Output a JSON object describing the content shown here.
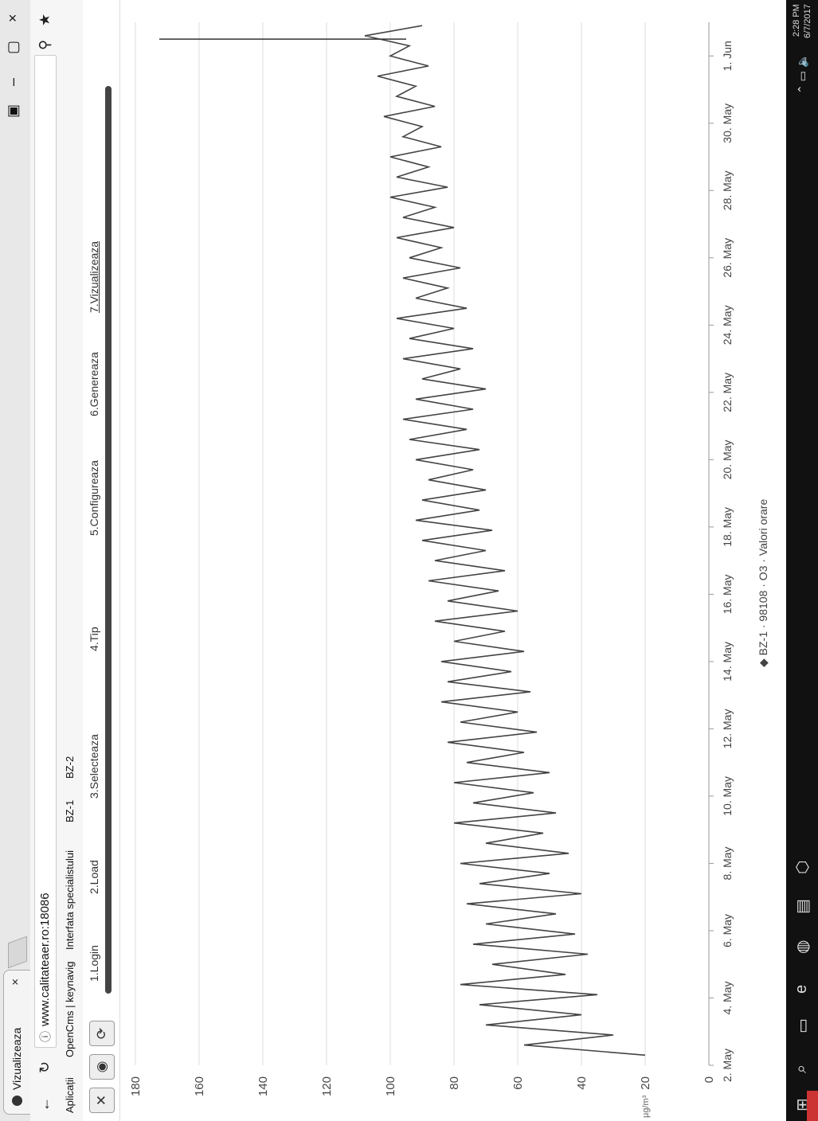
{
  "tab": {
    "title": "Vizualizeaza",
    "close": "×"
  },
  "window": {
    "minimize": "–",
    "maximize": "▢",
    "close": "×"
  },
  "address": {
    "url": "www.calitateaer.ro:18086"
  },
  "bookmarks": [
    "Aplicații",
    "OpenCms | keynavig",
    "Interfata specialistului",
    "BZ-1",
    "BZ-2"
  ],
  "steps": [
    "1.Login",
    "2.Load",
    "3.Selecteaza",
    "4.Tip",
    "5.Configureaza",
    "6.Genereaza",
    "7.Vizualizeaza"
  ],
  "taskbar": {
    "time": "2:28 PM",
    "date": "6/7/2017"
  },
  "chart_data": {
    "type": "line",
    "y_ticks": [
      "0",
      "20",
      "40",
      "60",
      "80",
      "100",
      "120",
      "140",
      "160",
      "180"
    ],
    "ylabel_unit": "µg/m³",
    "x_ticks": [
      "2. May",
      "4. May",
      "6. May",
      "8. May",
      "10. May",
      "12. May",
      "14. May",
      "16. May",
      "18. May",
      "20. May",
      "22. May",
      "24. May",
      "26. May",
      "28. May",
      "30. May",
      "1. Jun"
    ],
    "ylim": [
      0,
      180
    ],
    "xlim": [
      1,
      32
    ],
    "series": [
      {
        "name": "BZ-1 · 98108 · O3 · Valori orare",
        "color": "#444444",
        "x": [
          1.3,
          1.6,
          1.9,
          2.2,
          2.5,
          2.8,
          3.1,
          3.4,
          3.7,
          4.0,
          4.3,
          4.6,
          4.9,
          5.2,
          5.5,
          5.8,
          6.1,
          6.4,
          6.7,
          7.0,
          7.3,
          7.6,
          7.9,
          8.2,
          8.5,
          8.8,
          9.1,
          9.4,
          9.7,
          10.0,
          10.3,
          10.6,
          10.9,
          11.2,
          11.5,
          11.8,
          12.1,
          12.4,
          12.7,
          13.0,
          13.3,
          13.6,
          13.9,
          14.2,
          14.5,
          14.8,
          15.1,
          15.4,
          15.7,
          16.0,
          16.3,
          16.6,
          16.9,
          17.2,
          17.5,
          17.8,
          18.1,
          18.4,
          18.7,
          19.0,
          19.3,
          19.6,
          19.9,
          20.2,
          20.5,
          20.8,
          21.1,
          21.4,
          21.7,
          22.0,
          22.3,
          22.6,
          22.9,
          23.2,
          23.5,
          23.8,
          24.1,
          24.4,
          24.7,
          25.0,
          25.3,
          25.6,
          25.9,
          26.2,
          26.5,
          26.8,
          27.1,
          27.4,
          27.7,
          28.0,
          28.3,
          28.6,
          28.9,
          29.2,
          29.5,
          29.8,
          30.1,
          30.4,
          30.7,
          31.0,
          31.3,
          31.6,
          31.9
        ],
        "y": [
          20,
          58,
          30,
          70,
          40,
          72,
          35,
          78,
          45,
          68,
          38,
          74,
          42,
          70,
          48,
          76,
          40,
          72,
          50,
          78,
          44,
          70,
          52,
          80,
          48,
          74,
          55,
          80,
          50,
          76,
          58,
          82,
          54,
          78,
          60,
          84,
          56,
          82,
          62,
          84,
          58,
          80,
          64,
          86,
          60,
          82,
          66,
          88,
          64,
          86,
          70,
          90,
          68,
          92,
          72,
          90,
          70,
          88,
          74,
          92,
          72,
          94,
          76,
          96,
          74,
          92,
          70,
          90,
          78,
          96,
          74,
          94,
          80,
          98,
          76,
          92,
          82,
          96,
          78,
          94,
          84,
          98,
          80,
          96,
          86,
          100,
          82,
          98,
          88,
          100,
          84,
          96,
          90,
          102,
          86,
          98,
          92,
          104,
          88,
          100,
          94,
          108,
          90
        ]
      }
    ],
    "vertical_line_at": 31.5,
    "grid": true,
    "legend_position": "bottom"
  }
}
